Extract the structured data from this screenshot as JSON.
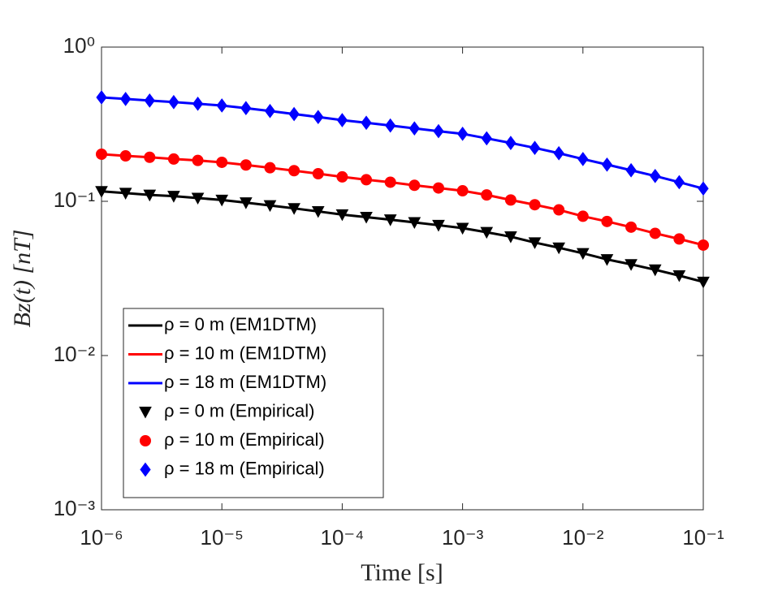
{
  "chart_data": {
    "type": "line",
    "xlabel": "Time [s]",
    "ylabel": "Bz(t) [nT]",
    "xscale": "log",
    "yscale": "log",
    "xlim": [
      1e-06,
      0.1
    ],
    "ylim": [
      0.001,
      1
    ],
    "xticks": [
      {
        "value": 1e-06,
        "label": "10⁻⁶"
      },
      {
        "value": 1e-05,
        "label": "10⁻⁵"
      },
      {
        "value": 0.0001,
        "label": "10⁻⁴"
      },
      {
        "value": 0.001,
        "label": "10⁻³"
      },
      {
        "value": 0.01,
        "label": "10⁻²"
      },
      {
        "value": 0.1,
        "label": "10⁻¹"
      }
    ],
    "yticks": [
      {
        "value": 0.001,
        "label": "10⁻³"
      },
      {
        "value": 0.01,
        "label": "10⁻²"
      },
      {
        "value": 0.1,
        "label": "10⁻¹"
      },
      {
        "value": 1,
        "label": "10⁰"
      }
    ],
    "legend": "lower-left",
    "x": [
      1e-06,
      1.585e-06,
      2.512e-06,
      3.981e-06,
      6.31e-06,
      1e-05,
      1.585e-05,
      2.512e-05,
      3.981e-05,
      6.31e-05,
      0.0001,
      0.0001585,
      0.0002512,
      0.0003981,
      0.000631,
      0.001,
      0.001585,
      0.002512,
      0.003981,
      0.00631,
      0.01,
      0.01585,
      0.02512,
      0.03981,
      0.0631,
      0.1
    ],
    "series": [
      {
        "name": "ρ =  0 m (EM1DTM)",
        "color": "#000000",
        "style": "line",
        "values": [
          0.116,
          0.113,
          0.11,
          0.108,
          0.105,
          0.102,
          0.098,
          0.094,
          0.09,
          0.086,
          0.082,
          0.079,
          0.076,
          0.073,
          0.07,
          0.067,
          0.063,
          0.059,
          0.054,
          0.05,
          0.046,
          0.042,
          0.039,
          0.036,
          0.033,
          0.03
        ]
      },
      {
        "name": "ρ = 10 m (EM1DTM)",
        "color": "#ff0000",
        "style": "line",
        "values": [
          0.202,
          0.197,
          0.193,
          0.188,
          0.184,
          0.179,
          0.172,
          0.165,
          0.158,
          0.151,
          0.144,
          0.138,
          0.133,
          0.127,
          0.122,
          0.117,
          0.11,
          0.102,
          0.095,
          0.088,
          0.08,
          0.074,
          0.068,
          0.062,
          0.057,
          0.052
        ]
      },
      {
        "name": "ρ = 18 m (EM1DTM)",
        "color": "#0000ff",
        "style": "line",
        "values": [
          0.472,
          0.461,
          0.45,
          0.44,
          0.429,
          0.418,
          0.402,
          0.385,
          0.368,
          0.352,
          0.336,
          0.323,
          0.31,
          0.297,
          0.285,
          0.274,
          0.256,
          0.239,
          0.222,
          0.205,
          0.188,
          0.173,
          0.159,
          0.146,
          0.133,
          0.121
        ]
      },
      {
        "name": "ρ =  0 m (Empirical)",
        "color": "#000000",
        "style": "marker",
        "marker": "triangle-down",
        "values": [
          0.116,
          0.113,
          0.11,
          0.108,
          0.105,
          0.102,
          0.098,
          0.094,
          0.09,
          0.086,
          0.082,
          0.079,
          0.076,
          0.073,
          0.07,
          0.067,
          0.063,
          0.059,
          0.054,
          0.05,
          0.046,
          0.042,
          0.039,
          0.036,
          0.033,
          0.03
        ]
      },
      {
        "name": "ρ = 10 m (Empirical)",
        "color": "#ff0000",
        "style": "marker",
        "marker": "circle",
        "values": [
          0.202,
          0.197,
          0.193,
          0.188,
          0.184,
          0.179,
          0.172,
          0.165,
          0.158,
          0.151,
          0.144,
          0.138,
          0.133,
          0.127,
          0.122,
          0.117,
          0.11,
          0.102,
          0.095,
          0.088,
          0.08,
          0.074,
          0.068,
          0.062,
          0.057,
          0.052
        ]
      },
      {
        "name": "ρ = 18 m (Empirical)",
        "color": "#0000ff",
        "style": "marker",
        "marker": "diamond",
        "values": [
          0.472,
          0.461,
          0.45,
          0.44,
          0.429,
          0.418,
          0.402,
          0.385,
          0.368,
          0.352,
          0.336,
          0.323,
          0.31,
          0.297,
          0.285,
          0.274,
          0.256,
          0.239,
          0.222,
          0.205,
          0.188,
          0.173,
          0.159,
          0.146,
          0.133,
          0.121
        ]
      }
    ]
  }
}
